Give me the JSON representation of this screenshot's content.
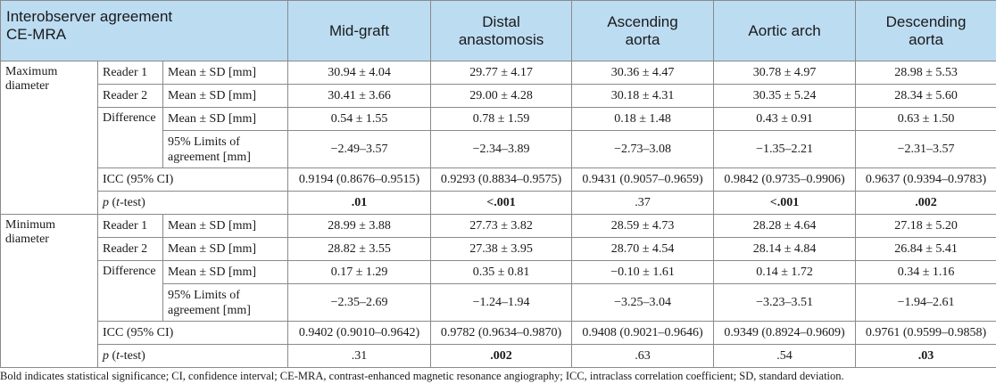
{
  "header": {
    "corner_line1": "Interobserver agreement",
    "corner_line2": "CE-MRA",
    "columns": [
      {
        "line1": "Mid-graft",
        "line2": ""
      },
      {
        "line1": "Distal",
        "line2": "anastomosis"
      },
      {
        "line1": "Ascending",
        "line2": "aorta"
      },
      {
        "line1": "Aortic arch",
        "line2": ""
      },
      {
        "line1": "Descending",
        "line2": "aorta"
      }
    ]
  },
  "groups": [
    {
      "name_line1": "Maximum",
      "name_line2": "diameter",
      "reader1": {
        "label": "Reader 1",
        "measure": "Mean ± SD [mm]",
        "values": [
          "30.94 ± 4.04",
          "29.77 ± 4.17",
          "30.36 ± 4.47",
          "30.78 ± 4.97",
          "28.98 ± 5.53"
        ]
      },
      "reader2": {
        "label": "Reader 2",
        "measure": "Mean ± SD [mm]",
        "values": [
          "30.41 ± 3.66",
          "29.00 ± 4.28",
          "30.18 ± 4.31",
          "30.35 ± 5.24",
          "28.34 ± 5.60"
        ]
      },
      "difference": {
        "label": "Difference",
        "measure": "Mean ± SD [mm]",
        "values": [
          "0.54 ± 1.55",
          "0.78 ± 1.59",
          "0.18 ± 1.48",
          "0.43 ± 0.91",
          "0.63 ± 1.50"
        ]
      },
      "limits": {
        "line1": "95% Limits of",
        "line2": "agreement [mm]",
        "values": [
          "−2.49–3.57",
          "−2.34–3.89",
          "−2.73–3.08",
          "−1.35–2.21",
          "−2.31–3.57"
        ]
      },
      "icc": {
        "label": "ICC (95% CI)",
        "values": [
          "0.9194 (0.8676–0.9515)",
          "0.9293 (0.8834–0.9575)",
          "0.9431 (0.9057–0.9659)",
          "0.9842 (0.9735–0.9906)",
          "0.9637 (0.9394–0.9783)"
        ]
      },
      "p": {
        "p": "p",
        "paren_open": " (",
        "t": "t",
        "rest": "-test)",
        "values": [
          ".01",
          "<.001",
          ".37",
          "<.001",
          ".002"
        ]
      }
    },
    {
      "name_line1": "Minimum",
      "name_line2": "diameter",
      "reader1": {
        "label": "Reader 1",
        "measure": "Mean ± SD [mm]",
        "values": [
          "28.99 ± 3.88",
          "27.73 ± 3.82",
          "28.59 ± 4.73",
          "28.28 ± 4.64",
          "27.18 ± 5.20"
        ]
      },
      "reader2": {
        "label": "Reader 2",
        "measure": "Mean ± SD [mm]",
        "values": [
          "28.82 ± 3.55",
          "27.38 ± 3.95",
          "28.70 ± 4.54",
          "28.14 ± 4.84",
          "26.84 ± 5.41"
        ]
      },
      "difference": {
        "label": "Difference",
        "measure": "Mean ± SD [mm]",
        "values": [
          "0.17 ± 1.29",
          "0.35 ± 0.81",
          "−0.10 ± 1.61",
          "0.14 ± 1.72",
          "0.34 ± 1.16"
        ]
      },
      "limits": {
        "line1": "95% Limits of",
        "line2": "agreement [mm]",
        "values": [
          "−2.35–2.69",
          "−1.24–1.94",
          "−3.25–3.04",
          "−3.23–3.51",
          "−1.94–2.61"
        ]
      },
      "icc": {
        "label": "ICC (95% CI)",
        "values": [
          "0.9402 (0.9010–0.9642)",
          "0.9782 (0.9634–0.9870)",
          "0.9408 (0.9021–0.9646)",
          "0.9349 (0.8924–0.9609)",
          "0.9761 (0.9599–0.9858)"
        ]
      },
      "p": {
        "p": "p",
        "paren_open": " (",
        "t": "t",
        "rest": "-test)",
        "values": [
          ".31",
          ".002",
          ".63",
          ".54",
          ".03"
        ]
      }
    }
  ],
  "footnote": "Bold indicates statistical significance; CI, confidence interval; CE-MRA, contrast-enhanced magnetic resonance angiography; ICC, intraclass correlation coefficient; SD, standard deviation.",
  "colors": {
    "header_bg": "#bcdcf2",
    "border": "#8a8a8a"
  }
}
